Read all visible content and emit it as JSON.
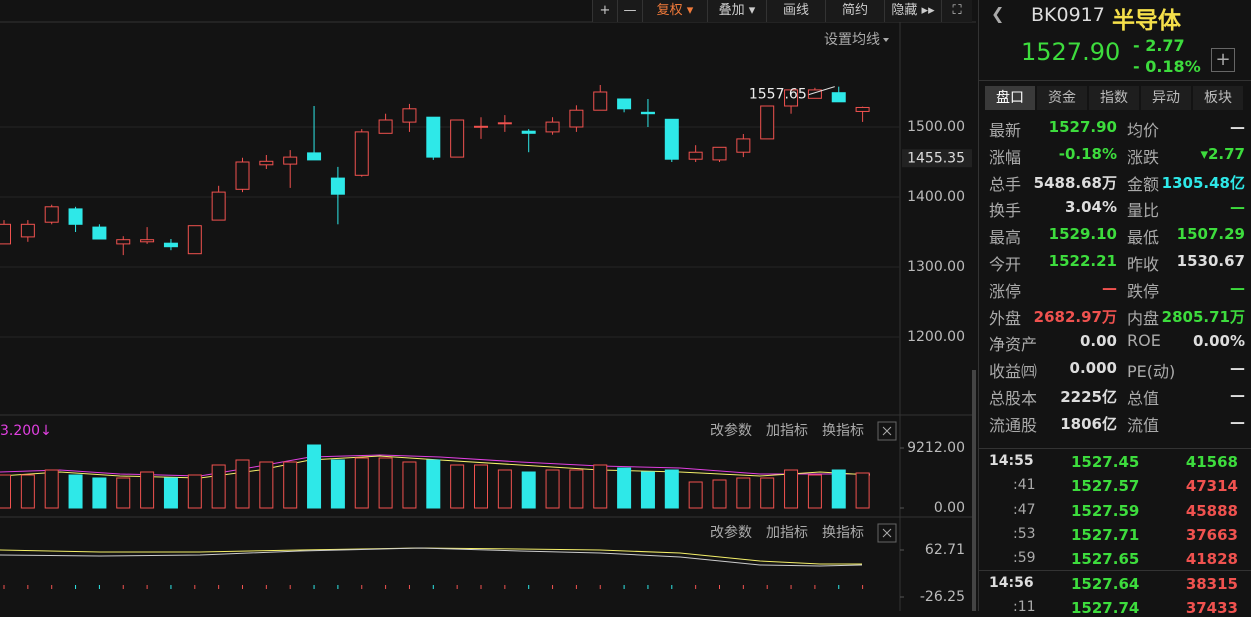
{
  "toolbar": {
    "buttons": [
      "+",
      "—",
      "复权 ▾",
      "叠加 ▾",
      "画线",
      "简约",
      "隐藏 ▸▸"
    ],
    "ma_setting": "设置均线"
  },
  "kline": {
    "candles": [
      {
        "open": 1333,
        "close": 1361,
        "high": 1367,
        "low": 1333
      },
      {
        "open": 1343,
        "close": 1361,
        "high": 1367,
        "low": 1336
      },
      {
        "open": 1364,
        "close": 1386,
        "high": 1389,
        "low": 1361
      },
      {
        "open": 1383,
        "close": 1361,
        "high": 1386,
        "low": 1350
      },
      {
        "open": 1357,
        "close": 1340,
        "high": 1361,
        "low": 1340
      },
      {
        "open": 1333,
        "close": 1339,
        "high": 1344,
        "low": 1317
      },
      {
        "open": 1336,
        "close": 1339,
        "high": 1357,
        "low": 1333
      },
      {
        "open": 1334,
        "close": 1329,
        "high": 1340,
        "low": 1324
      },
      {
        "open": 1319,
        "close": 1359,
        "high": 1359,
        "low": 1319
      },
      {
        "open": 1367,
        "close": 1407,
        "high": 1416,
        "low": 1367
      },
      {
        "open": 1411,
        "close": 1450,
        "high": 1456,
        "low": 1407
      },
      {
        "open": 1446,
        "close": 1451,
        "high": 1460,
        "low": 1440
      },
      {
        "open": 1447,
        "close": 1457,
        "high": 1467,
        "low": 1413
      },
      {
        "open": 1463,
        "close": 1453,
        "high": 1530,
        "low": 1453
      },
      {
        "open": 1427,
        "close": 1404,
        "high": 1443,
        "low": 1361
      },
      {
        "open": 1431,
        "close": 1493,
        "high": 1497,
        "low": 1429
      },
      {
        "open": 1491,
        "close": 1510,
        "high": 1519,
        "low": 1491
      },
      {
        "open": 1507,
        "close": 1526,
        "high": 1533,
        "low": 1493
      },
      {
        "open": 1514,
        "close": 1457,
        "high": 1514,
        "low": 1453
      },
      {
        "open": 1457,
        "close": 1510,
        "high": 1510,
        "low": 1457
      },
      {
        "open": 1500,
        "close": 1501,
        "high": 1514,
        "low": 1483
      },
      {
        "open": 1505,
        "close": 1506,
        "high": 1517,
        "low": 1493
      },
      {
        "open": 1494,
        "close": 1491,
        "high": 1497,
        "low": 1464
      },
      {
        "open": 1493,
        "close": 1507,
        "high": 1514,
        "low": 1489
      },
      {
        "open": 1500,
        "close": 1524,
        "high": 1531,
        "low": 1493
      },
      {
        "open": 1524,
        "close": 1550,
        "high": 1560,
        "low": 1524
      },
      {
        "open": 1540,
        "close": 1526,
        "high": 1540,
        "low": 1521
      },
      {
        "open": 1521,
        "close": 1519,
        "high": 1540,
        "low": 1500
      },
      {
        "open": 1511,
        "close": 1454,
        "high": 1511,
        "low": 1450
      },
      {
        "open": 1454,
        "close": 1464,
        "high": 1474,
        "low": 1450
      },
      {
        "open": 1453,
        "close": 1471,
        "high": 1471,
        "low": 1450
      },
      {
        "open": 1464,
        "close": 1483,
        "high": 1490,
        "low": 1457
      },
      {
        "open": 1483,
        "close": 1530,
        "high": 1530,
        "low": 1483
      },
      {
        "open": 1530,
        "close": 1553,
        "high": 1553,
        "low": 1519
      },
      {
        "open": 1541,
        "close": 1553,
        "high": 1556,
        "low": 1541
      },
      {
        "open": 1549,
        "close": 1536,
        "high": 1557.65,
        "low": 1536
      },
      {
        "open": 1522.21,
        "close": 1527.9,
        "high": 1529.1,
        "low": 1507.29
      }
    ],
    "high_label": 1557.65,
    "ylim": [
      1120,
      1600
    ],
    "yticks": [
      {
        "value": 1500,
        "label": "1500.00"
      },
      {
        "value": 1400,
        "label": "1400.00"
      },
      {
        "value": 1300,
        "label": "1300.00"
      },
      {
        "value": 1200,
        "label": "1200.00"
      }
    ],
    "cursor_price": 1455.35,
    "up_color": "#f0524f",
    "down_color": "#2ee8e8"
  },
  "volume": {
    "ma_label": "3.200↓",
    "actions": [
      "改参数",
      "加指标",
      "换指标"
    ],
    "values": [
      5067,
      5067,
      5834,
      5067,
      4606,
      4606,
      5527,
      4606,
      5067,
      6602,
      7370,
      7063,
      7063,
      9672,
      7370,
      7677,
      7677,
      7063,
      7370,
      6602,
      6602,
      5834,
      5527,
      5834,
      5834,
      6602,
      6141,
      5527,
      5834,
      3992,
      4299,
      4606,
      4606,
      5834,
      5067,
      5834,
      5374
    ],
    "ylim": [
      0,
      9212
    ],
    "yticks": [
      {
        "value": 9212,
        "label": "9212.00"
      },
      {
        "value": 0,
        "label": "0.00"
      }
    ]
  },
  "indicator": {
    "actions": [
      "改参数",
      "加指标",
      "换指标"
    ],
    "ylim": [
      -26.25,
      62.71
    ],
    "yticks": [
      62.71,
      -26.25
    ]
  },
  "quote": {
    "code": "BK0917",
    "name": "半导体",
    "price": "1527.90",
    "change": "- 2.77",
    "change_pct": "- 0.18%",
    "tabs": [
      "盘口",
      "资金",
      "指数",
      "异动",
      "板块"
    ],
    "stats": [
      {
        "label": "最新",
        "value": "1527.90",
        "color": "#3ddc3d",
        "label2": "均价",
        "value2": "—",
        "color2": "#ddd"
      },
      {
        "label": "涨幅",
        "value": "-0.18%",
        "color": "#3ddc3d",
        "label2": "涨跌",
        "value2": "▾2.77",
        "color2": "#3ddc3d"
      },
      {
        "label": "总手",
        "value": "5488.68万",
        "color": "#ddd",
        "label2": "金额",
        "value2": "1305.48亿",
        "color2": "#2ee8e8"
      },
      {
        "label": "换手",
        "value": "3.04%",
        "color": "#ddd",
        "label2": "量比",
        "value2": "—",
        "color2": "#3ddc3d"
      },
      {
        "label": "最高",
        "value": "1529.10",
        "color": "#3ddc3d",
        "label2": "最低",
        "value2": "1507.29",
        "color2": "#3ddc3d"
      },
      {
        "label": "今开",
        "value": "1522.21",
        "color": "#3ddc3d",
        "label2": "昨收",
        "value2": "1530.67",
        "color2": "#ddd"
      },
      {
        "label": "涨停",
        "value": "—",
        "color": "#f0524f",
        "label2": "跌停",
        "value2": "—",
        "color2": "#3ddc3d"
      },
      {
        "label": "外盘",
        "value": "2682.97万",
        "color": "#f0524f",
        "label2": "内盘",
        "value2": "2805.71万",
        "color2": "#3ddc3d"
      },
      {
        "label": "净资产",
        "value": "0.00",
        "color": "#ddd",
        "label2": "ROE",
        "value2": "0.00%",
        "color2": "#ddd"
      },
      {
        "label": "收益㈣",
        "value": "0.000",
        "color": "#ddd",
        "label2": "PE(动)",
        "value2": "—",
        "color2": "#ddd"
      },
      {
        "label": "总股本",
        "value": "2225亿",
        "color": "#ddd",
        "label2": "总值",
        "value2": "—",
        "color2": "#ddd"
      },
      {
        "label": "流通股",
        "value": "1806亿",
        "color": "#ddd",
        "label2": "流值",
        "value2": "—",
        "color2": "#ddd"
      }
    ]
  },
  "ticks": [
    {
      "time": "14:55",
      "price": "1527.45",
      "volume": "41568",
      "color": "#3ddc3d"
    },
    {
      "time": ":41",
      "price": "1527.57",
      "volume": "47314",
      "color": "#f0524f"
    },
    {
      "time": ":47",
      "price": "1527.59",
      "volume": "45888",
      "color": "#f0524f"
    },
    {
      "time": ":53",
      "price": "1527.71",
      "volume": "37663",
      "color": "#f0524f"
    },
    {
      "time": ":59",
      "price": "1527.65",
      "volume": "41828",
      "color": "#f0524f"
    },
    {
      "time": "14:56",
      "price": "1527.64",
      "volume": "38315",
      "color": "#f0524f"
    },
    {
      "time": ":11",
      "price": "1527.74",
      "volume": "37433",
      "color": "#f0524f"
    }
  ]
}
